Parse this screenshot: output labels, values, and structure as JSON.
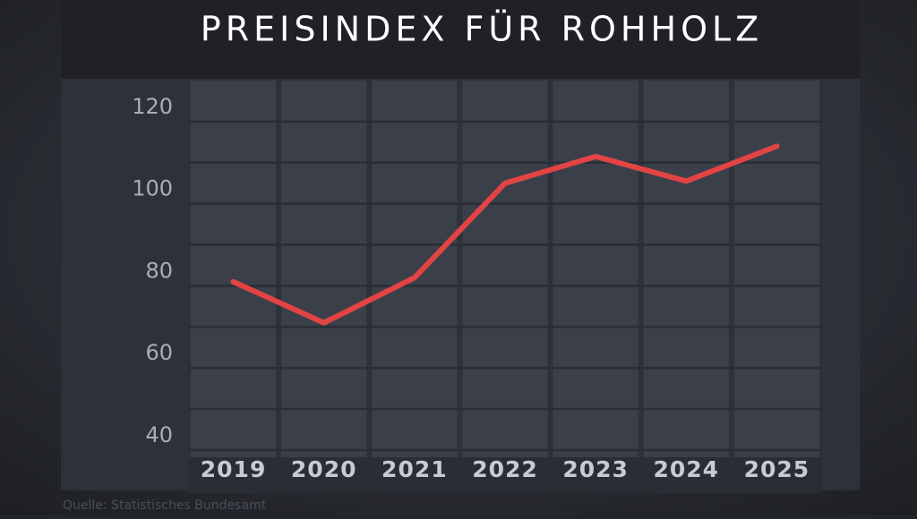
{
  "chart_data": {
    "type": "line",
    "title": "PREISINDEX FÜR ROHHOLZ",
    "categories": [
      "2019",
      "2020",
      "2021",
      "2022",
      "2023",
      "2024",
      "2025"
    ],
    "series": [
      {
        "color": "#e24444",
        "values": [
          81,
          71,
          82,
          105,
          111.5,
          105.5,
          114
        ]
      }
    ],
    "ylim": [
      40,
      130
    ],
    "yticks": [
      40,
      60,
      80,
      100,
      120
    ],
    "minor_yticks": [
      50,
      70,
      90,
      110
    ],
    "grid": true,
    "source": "Quelle: Statistisches Bundesamt"
  }
}
